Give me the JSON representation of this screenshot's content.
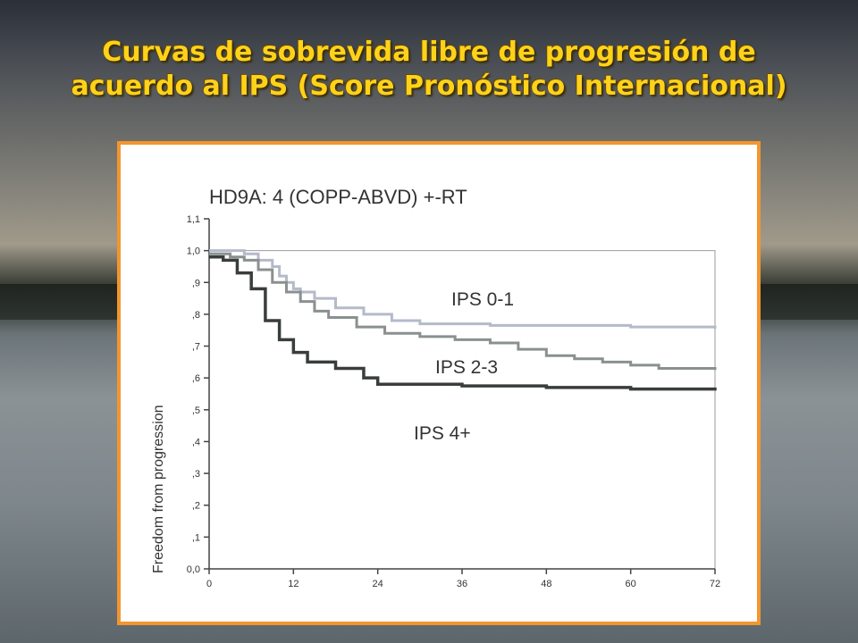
{
  "slide": {
    "title_line1": "Curvas de sobrevida libre de progresión de",
    "title_line2": "acuerdo al IPS (Score Pronóstico Internacional)"
  },
  "chart_data": {
    "type": "line",
    "title": "HD9A: 4 (COPP-ABVD) +-RT",
    "xlabel": "",
    "ylabel": "Freedom from progression",
    "xlim": [
      0,
      72
    ],
    "ylim": [
      0.0,
      1.1
    ],
    "x_ticks": [
      "0",
      "12",
      "24",
      "36",
      "48",
      "60",
      "72"
    ],
    "y_ticks": [
      "0,0",
      ",1",
      ",2",
      ",3",
      ",4",
      ",5",
      ",6",
      ",7",
      ",8",
      ",9",
      "1,0",
      "1,1"
    ],
    "grid": false,
    "series": [
      {
        "name": "IPS 0-1",
        "color": "#b4bac9",
        "points": [
          [
            0,
            1.0
          ],
          [
            4,
            1.0
          ],
          [
            5,
            0.99
          ],
          [
            7,
            0.97
          ],
          [
            9,
            0.95
          ],
          [
            10,
            0.92
          ],
          [
            11,
            0.9
          ],
          [
            12,
            0.88
          ],
          [
            13,
            0.87
          ],
          [
            15,
            0.85
          ],
          [
            18,
            0.82
          ],
          [
            22,
            0.8
          ],
          [
            26,
            0.78
          ],
          [
            30,
            0.77
          ],
          [
            40,
            0.765
          ],
          [
            50,
            0.765
          ],
          [
            60,
            0.76
          ],
          [
            72,
            0.755
          ]
        ]
      },
      {
        "name": "IPS 2-3",
        "color": "#8a9090",
        "points": [
          [
            0,
            0.99
          ],
          [
            3,
            0.98
          ],
          [
            5,
            0.97
          ],
          [
            7,
            0.94
          ],
          [
            9,
            0.9
          ],
          [
            11,
            0.87
          ],
          [
            13,
            0.84
          ],
          [
            15,
            0.81
          ],
          [
            17,
            0.79
          ],
          [
            21,
            0.76
          ],
          [
            25,
            0.74
          ],
          [
            30,
            0.73
          ],
          [
            35,
            0.72
          ],
          [
            40,
            0.71
          ],
          [
            44,
            0.69
          ],
          [
            48,
            0.67
          ],
          [
            52,
            0.66
          ],
          [
            56,
            0.65
          ],
          [
            60,
            0.64
          ],
          [
            64,
            0.63
          ],
          [
            72,
            0.625
          ]
        ]
      },
      {
        "name": "IPS 4+",
        "color": "#3a3d3d",
        "points": [
          [
            0,
            0.98
          ],
          [
            2,
            0.97
          ],
          [
            4,
            0.93
          ],
          [
            6,
            0.88
          ],
          [
            8,
            0.78
          ],
          [
            10,
            0.72
          ],
          [
            12,
            0.68
          ],
          [
            14,
            0.65
          ],
          [
            18,
            0.63
          ],
          [
            22,
            0.6
          ],
          [
            24,
            0.58
          ],
          [
            36,
            0.575
          ],
          [
            48,
            0.57
          ],
          [
            60,
            0.565
          ],
          [
            72,
            0.56
          ]
        ]
      }
    ],
    "legend": "inline labels"
  }
}
